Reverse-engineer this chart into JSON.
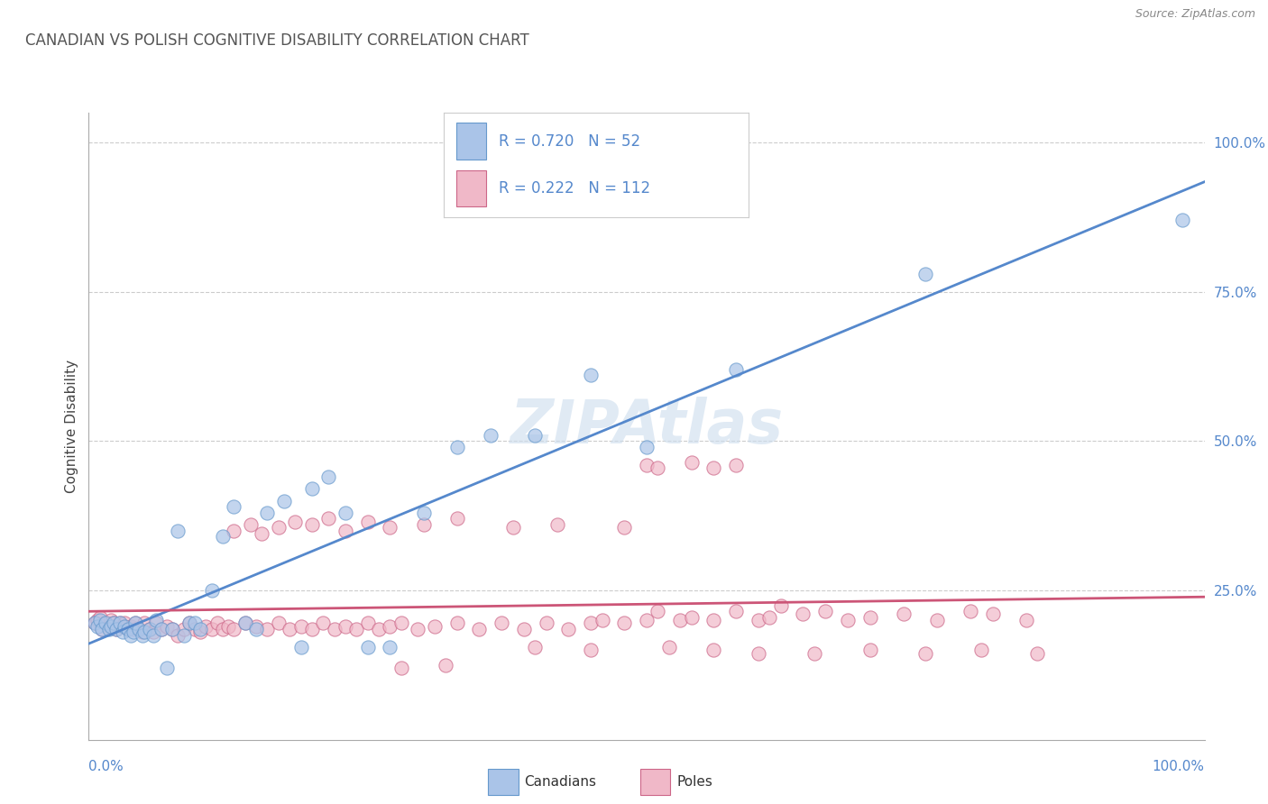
{
  "title": "CANADIAN VS POLISH COGNITIVE DISABILITY CORRELATION CHART",
  "source_text": "Source: ZipAtlas.com",
  "ylabel": "Cognitive Disability",
  "xlim": [
    0.0,
    1.0
  ],
  "ylim": [
    0.0,
    1.05
  ],
  "x_tick_labels": [
    "0.0%",
    "100.0%"
  ],
  "y_tick_labels_right": [
    "100.0%",
    "75.0%",
    "50.0%",
    "25.0%"
  ],
  "y_tick_positions_right": [
    1.0,
    0.75,
    0.5,
    0.25
  ],
  "canadian_color": "#aac4e8",
  "canadian_edge_color": "#6699cc",
  "canadian_line_color": "#5588cc",
  "polish_color": "#f0b8c8",
  "polish_edge_color": "#cc6688",
  "polish_line_color": "#cc5577",
  "R_canadian": 0.72,
  "N_canadian": 52,
  "R_polish": 0.222,
  "N_polish": 112,
  "watermark": "ZIPAtlas",
  "background_color": "#ffffff",
  "grid_color": "#cccccc",
  "title_color": "#555555",
  "label_color": "#444444",
  "tick_color": "#5588cc",
  "canadians_x": [
    0.005,
    0.008,
    0.01,
    0.012,
    0.015,
    0.018,
    0.02,
    0.022,
    0.025,
    0.028,
    0.03,
    0.032,
    0.035,
    0.038,
    0.04,
    0.042,
    0.045,
    0.048,
    0.05,
    0.055,
    0.058,
    0.06,
    0.065,
    0.07,
    0.075,
    0.08,
    0.085,
    0.09,
    0.095,
    0.1,
    0.11,
    0.12,
    0.13,
    0.14,
    0.15,
    0.16,
    0.175,
    0.19,
    0.2,
    0.215,
    0.23,
    0.25,
    0.27,
    0.3,
    0.33,
    0.36,
    0.4,
    0.45,
    0.5,
    0.58,
    0.75,
    0.98
  ],
  "canadians_y": [
    0.195,
    0.19,
    0.2,
    0.185,
    0.195,
    0.185,
    0.19,
    0.195,
    0.185,
    0.195,
    0.18,
    0.19,
    0.185,
    0.175,
    0.18,
    0.195,
    0.185,
    0.175,
    0.18,
    0.185,
    0.175,
    0.2,
    0.185,
    0.12,
    0.185,
    0.35,
    0.175,
    0.195,
    0.195,
    0.185,
    0.25,
    0.34,
    0.39,
    0.195,
    0.185,
    0.38,
    0.4,
    0.155,
    0.42,
    0.44,
    0.38,
    0.155,
    0.155,
    0.38,
    0.49,
    0.51,
    0.51,
    0.61,
    0.49,
    0.62,
    0.78,
    0.87
  ],
  "poles_x": [
    0.005,
    0.008,
    0.01,
    0.012,
    0.015,
    0.018,
    0.02,
    0.022,
    0.025,
    0.028,
    0.03,
    0.032,
    0.035,
    0.038,
    0.04,
    0.042,
    0.045,
    0.048,
    0.05,
    0.055,
    0.058,
    0.06,
    0.065,
    0.07,
    0.075,
    0.08,
    0.085,
    0.09,
    0.095,
    0.1,
    0.105,
    0.11,
    0.115,
    0.12,
    0.125,
    0.13,
    0.14,
    0.15,
    0.16,
    0.17,
    0.18,
    0.19,
    0.2,
    0.21,
    0.22,
    0.23,
    0.24,
    0.25,
    0.26,
    0.27,
    0.28,
    0.295,
    0.31,
    0.33,
    0.35,
    0.37,
    0.39,
    0.41,
    0.43,
    0.45,
    0.46,
    0.48,
    0.5,
    0.51,
    0.53,
    0.54,
    0.56,
    0.58,
    0.6,
    0.61,
    0.62,
    0.64,
    0.66,
    0.68,
    0.7,
    0.73,
    0.76,
    0.79,
    0.81,
    0.84,
    0.5,
    0.51,
    0.54,
    0.56,
    0.58,
    0.13,
    0.145,
    0.155,
    0.17,
    0.185,
    0.2,
    0.215,
    0.23,
    0.25,
    0.27,
    0.3,
    0.33,
    0.38,
    0.42,
    0.48,
    0.4,
    0.45,
    0.52,
    0.56,
    0.6,
    0.65,
    0.7,
    0.75,
    0.8,
    0.85,
    0.28,
    0.32
  ],
  "poles_y": [
    0.195,
    0.2,
    0.205,
    0.185,
    0.195,
    0.19,
    0.2,
    0.195,
    0.185,
    0.195,
    0.19,
    0.195,
    0.185,
    0.19,
    0.185,
    0.195,
    0.185,
    0.18,
    0.195,
    0.185,
    0.18,
    0.195,
    0.185,
    0.19,
    0.185,
    0.175,
    0.185,
    0.195,
    0.185,
    0.18,
    0.19,
    0.185,
    0.195,
    0.185,
    0.19,
    0.185,
    0.195,
    0.19,
    0.185,
    0.195,
    0.185,
    0.19,
    0.185,
    0.195,
    0.185,
    0.19,
    0.185,
    0.195,
    0.185,
    0.19,
    0.195,
    0.185,
    0.19,
    0.195,
    0.185,
    0.195,
    0.185,
    0.195,
    0.185,
    0.195,
    0.2,
    0.195,
    0.2,
    0.215,
    0.2,
    0.205,
    0.2,
    0.215,
    0.2,
    0.205,
    0.225,
    0.21,
    0.215,
    0.2,
    0.205,
    0.21,
    0.2,
    0.215,
    0.21,
    0.2,
    0.46,
    0.455,
    0.465,
    0.455,
    0.46,
    0.35,
    0.36,
    0.345,
    0.355,
    0.365,
    0.36,
    0.37,
    0.35,
    0.365,
    0.355,
    0.36,
    0.37,
    0.355,
    0.36,
    0.355,
    0.155,
    0.15,
    0.155,
    0.15,
    0.145,
    0.145,
    0.15,
    0.145,
    0.15,
    0.145,
    0.12,
    0.125
  ]
}
